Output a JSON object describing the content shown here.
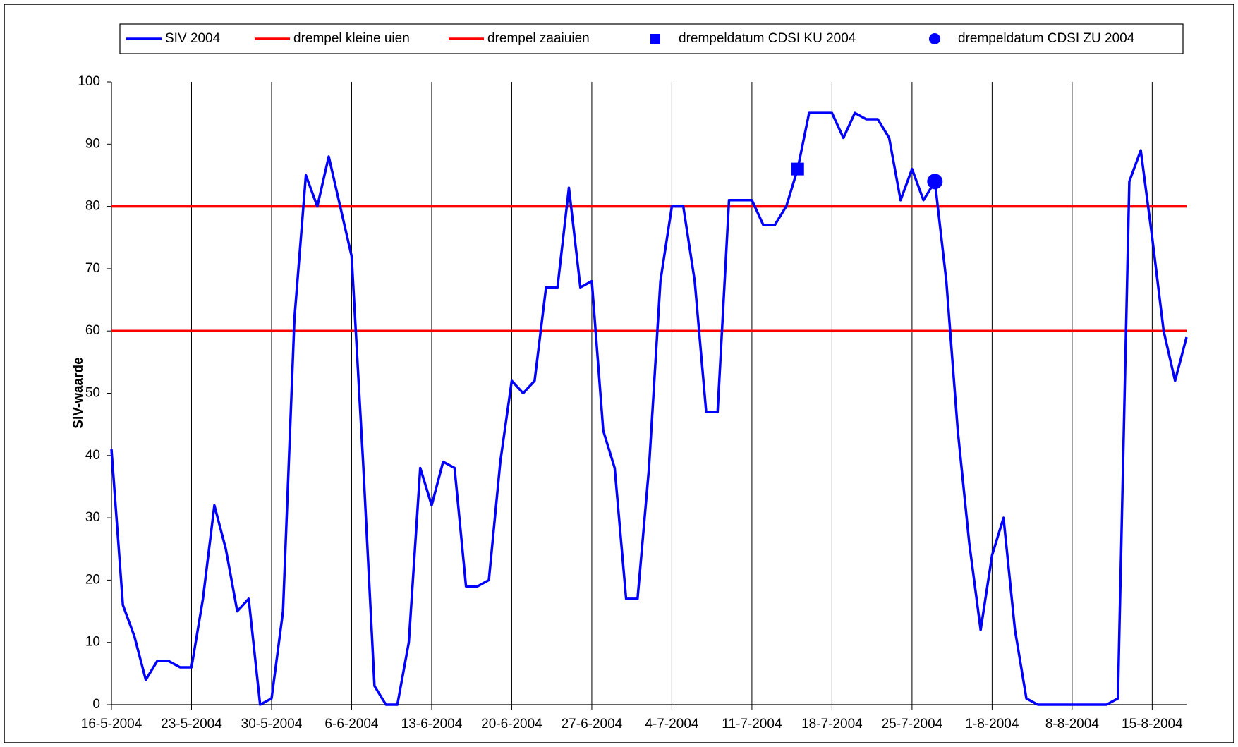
{
  "chart_data": {
    "type": "line",
    "ylabel": "SIV-waarde",
    "x": [
      "2004-05-16",
      "2004-05-17",
      "2004-05-18",
      "2004-05-19",
      "2004-05-20",
      "2004-05-21",
      "2004-05-22",
      "2004-05-23",
      "2004-05-24",
      "2004-05-25",
      "2004-05-26",
      "2004-05-27",
      "2004-05-28",
      "2004-05-29",
      "2004-05-30",
      "2004-05-31",
      "2004-06-01",
      "2004-06-02",
      "2004-06-03",
      "2004-06-04",
      "2004-06-05",
      "2004-06-06",
      "2004-06-07",
      "2004-06-08",
      "2004-06-09",
      "2004-06-10",
      "2004-06-11",
      "2004-06-12",
      "2004-06-13",
      "2004-06-14",
      "2004-06-15",
      "2004-06-16",
      "2004-06-17",
      "2004-06-18",
      "2004-06-19",
      "2004-06-20",
      "2004-06-21",
      "2004-06-22",
      "2004-06-23",
      "2004-06-24",
      "2004-06-25",
      "2004-06-26",
      "2004-06-27",
      "2004-06-28",
      "2004-06-29",
      "2004-06-30",
      "2004-07-01",
      "2004-07-02",
      "2004-07-03",
      "2004-07-04",
      "2004-07-05",
      "2004-07-06",
      "2004-07-07",
      "2004-07-08",
      "2004-07-09",
      "2004-07-10",
      "2004-07-11",
      "2004-07-12",
      "2004-07-13",
      "2004-07-14",
      "2004-07-15",
      "2004-07-16",
      "2004-07-17",
      "2004-07-18",
      "2004-07-19",
      "2004-07-20",
      "2004-07-21",
      "2004-07-22",
      "2004-07-23",
      "2004-07-24",
      "2004-07-25",
      "2004-07-26",
      "2004-07-27",
      "2004-07-28",
      "2004-07-29",
      "2004-07-30",
      "2004-07-31",
      "2004-08-01",
      "2004-08-02",
      "2004-08-03",
      "2004-08-04",
      "2004-08-05",
      "2004-08-06",
      "2004-08-07",
      "2004-08-08",
      "2004-08-09",
      "2004-08-10",
      "2004-08-11",
      "2004-08-12",
      "2004-08-13",
      "2004-08-14",
      "2004-08-15",
      "2004-08-16",
      "2004-08-17",
      "2004-08-18"
    ],
    "series": [
      {
        "name": "SIV 2004",
        "color": "#0000ff",
        "values": [
          41,
          16,
          11,
          4,
          7,
          7,
          6,
          6,
          17,
          32,
          25,
          15,
          17,
          0,
          1,
          15,
          62,
          85,
          80,
          88,
          80,
          72,
          39,
          3,
          0,
          0,
          10,
          38,
          32,
          39,
          38,
          19,
          19,
          20,
          39,
          52,
          50,
          52,
          67,
          67,
          83,
          67,
          68,
          44,
          38,
          17,
          17,
          38,
          68,
          80,
          80,
          68,
          47,
          47,
          81,
          81,
          81,
          77,
          77,
          80,
          86,
          95,
          95,
          95,
          91,
          95,
          94,
          94,
          91,
          81,
          86,
          81,
          84,
          68,
          44,
          26,
          12,
          24,
          30,
          12,
          1,
          0,
          0,
          0,
          0,
          0,
          0,
          0,
          1,
          84,
          89,
          75,
          60,
          52,
          59
        ]
      }
    ],
    "thresholds": [
      {
        "name": "drempel kleine uien",
        "color": "#ff0000",
        "value": 80
      },
      {
        "name": "drempel zaaiuien",
        "color": "#ff0000",
        "value": 60
      }
    ],
    "markers": [
      {
        "name": "drempeldatum CDSI KU 2004",
        "color": "#0000ff",
        "shape": "square",
        "x": "2004-07-15",
        "value": 86
      },
      {
        "name": "drempeldatum CDSI ZU 2004",
        "color": "#0000ff",
        "shape": "circle",
        "x": "2004-07-27",
        "value": 84
      }
    ],
    "xlim": [
      "2004-05-16",
      "2004-08-18"
    ],
    "xticks": [
      {
        "value": "2004-05-16",
        "label": "16-5-2004"
      },
      {
        "value": "2004-05-23",
        "label": "23-5-2004"
      },
      {
        "value": "2004-05-30",
        "label": "30-5-2004"
      },
      {
        "value": "2004-06-06",
        "label": "6-6-2004"
      },
      {
        "value": "2004-06-13",
        "label": "13-6-2004"
      },
      {
        "value": "2004-06-20",
        "label": "20-6-2004"
      },
      {
        "value": "2004-06-27",
        "label": "27-6-2004"
      },
      {
        "value": "2004-07-04",
        "label": "4-7-2004"
      },
      {
        "value": "2004-07-11",
        "label": "11-7-2004"
      },
      {
        "value": "2004-07-18",
        "label": "18-7-2004"
      },
      {
        "value": "2004-07-25",
        "label": "25-7-2004"
      },
      {
        "value": "2004-08-01",
        "label": "1-8-2004"
      },
      {
        "value": "2004-08-08",
        "label": "8-8-2004"
      },
      {
        "value": "2004-08-15",
        "label": "15-8-2004"
      }
    ],
    "ylim": [
      0,
      100
    ],
    "yticks": [
      0,
      10,
      20,
      30,
      40,
      50,
      60,
      70,
      80,
      90,
      100
    ],
    "xgrid": true
  }
}
